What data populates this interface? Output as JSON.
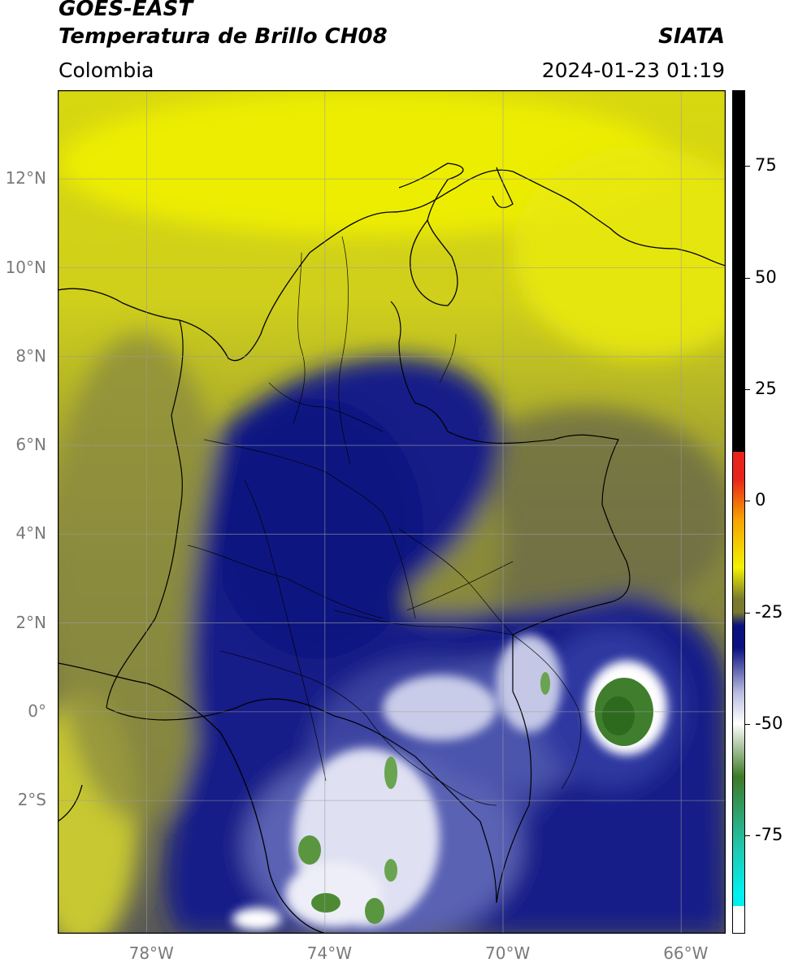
{
  "header": {
    "satellite": "GOES-EAST",
    "product": "Temperatura de Brillo CH08",
    "region": "Colombia",
    "agency": "SIATA",
    "datetime": "2024-01-23 01:19"
  },
  "map": {
    "lat_ticks": [
      {
        "label": "12°N",
        "value": 12
      },
      {
        "label": "10°N",
        "value": 10
      },
      {
        "label": "8°N",
        "value": 8
      },
      {
        "label": "6°N",
        "value": 6
      },
      {
        "label": "4°N",
        "value": 4
      },
      {
        "label": "2°N",
        "value": 2
      },
      {
        "label": "0°",
        "value": 0
      },
      {
        "label": "2°S",
        "value": -2
      }
    ],
    "lon_ticks": [
      {
        "label": "78°W",
        "value": -78
      },
      {
        "label": "74°W",
        "value": -74
      },
      {
        "label": "70°W",
        "value": -70
      },
      {
        "label": "66°W",
        "value": -66
      }
    ],
    "lat_range": [
      -5.0,
      14.0
    ],
    "lon_range": [
      -80.0,
      -65.0
    ],
    "gridlines": true
  },
  "colorbar": {
    "ticks": [
      {
        "label": "75",
        "value": 75
      },
      {
        "label": "50",
        "value": 50
      },
      {
        "label": "25",
        "value": 25
      },
      {
        "label": "0",
        "value": 0
      },
      {
        "label": "-25",
        "value": -25
      },
      {
        "label": "-50",
        "value": -50
      },
      {
        "label": "-75",
        "value": -75
      }
    ],
    "range": [
      -97,
      92
    ],
    "colors": {
      "warm": "#000000",
      "red": "#e8231b",
      "orange": "#f7a000",
      "yellow": "#f2f200",
      "olive": "#7a7a2e",
      "navy": "#0a1080",
      "lavender": "#b8bce0",
      "white": "#ffffff",
      "green": "#3d7a25",
      "teal": "#20c8b0",
      "cyan": "#00f0f0"
    }
  }
}
